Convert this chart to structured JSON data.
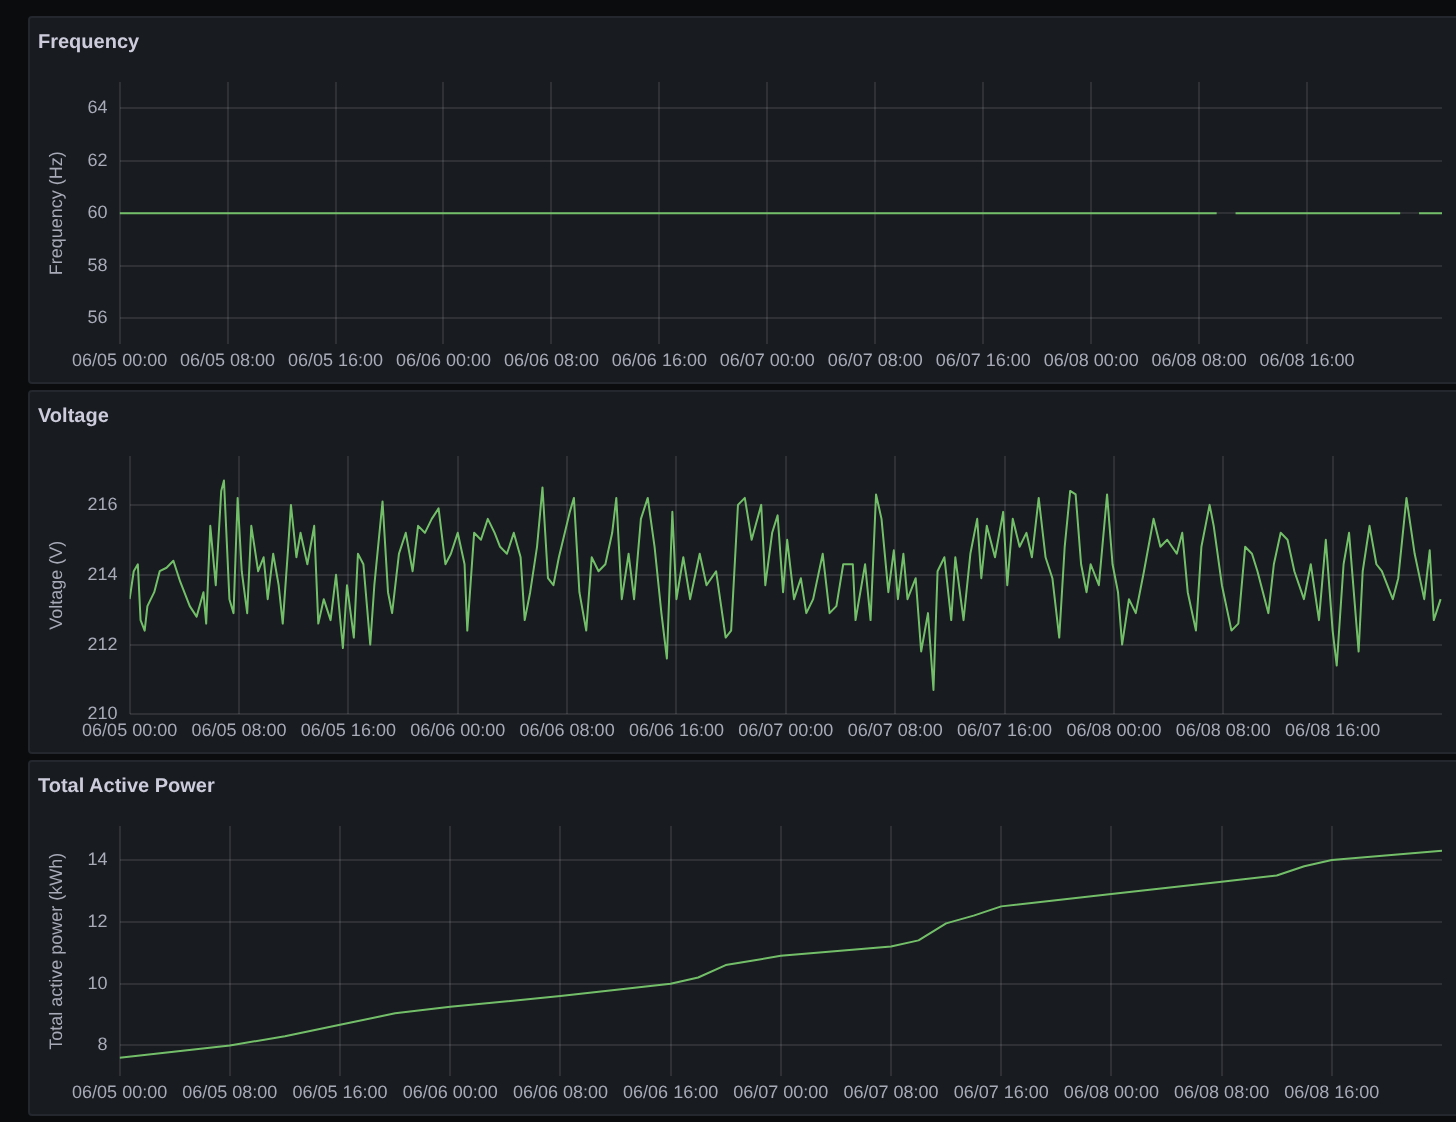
{
  "chart_data": [
    {
      "type": "line",
      "title": "Frequency",
      "ylabel": "Frequency (Hz)",
      "color": "#73bf69",
      "marker": "none",
      "grid": true,
      "xlim": [
        "--06-05T00:00",
        "--06-09T02:00"
      ],
      "ylim": [
        55,
        65
      ],
      "yticks": [
        56,
        58,
        60,
        62,
        64
      ],
      "xticks": [
        {
          "value": "--06-05T00:00",
          "label": "06/05 00:00"
        },
        {
          "value": "--06-05T08:00",
          "label": "06/05 08:00"
        },
        {
          "value": "--06-05T16:00",
          "label": "06/05 16:00"
        },
        {
          "value": "--06-06T00:00",
          "label": "06/06 00:00"
        },
        {
          "value": "--06-06T08:00",
          "label": "06/06 08:00"
        },
        {
          "value": "--06-06T16:00",
          "label": "06/06 16:00"
        },
        {
          "value": "--06-07T00:00",
          "label": "06/07 00:00"
        },
        {
          "value": "--06-07T08:00",
          "label": "06/07 08:00"
        },
        {
          "value": "--06-07T16:00",
          "label": "06/07 16:00"
        },
        {
          "value": "--06-08T00:00",
          "label": "06/08 00:00"
        },
        {
          "value": "--06-08T08:00",
          "label": "06/08 08:00"
        },
        {
          "value": "--06-08T16:00",
          "label": "06/08 16:00"
        }
      ],
      "x": [
        "--06-05T00:00",
        "--06-05T03:00",
        "--06-05T06:00",
        "--06-05T09:00",
        "--06-05T12:00",
        "--06-05T15:00",
        "--06-05T18:00",
        "--06-05T21:00",
        "--06-06T00:00",
        "--06-06T03:00",
        "--06-06T06:00",
        "--06-06T09:00",
        "--06-06T12:00",
        "--06-06T15:00",
        "--06-06T18:00",
        "--06-06T21:00",
        "--06-07T00:00",
        "--06-07T03:00",
        "--06-07T06:00",
        "--06-07T09:00",
        "--06-07T12:00",
        "--06-07T15:00",
        "--06-07T18:00",
        "--06-07T21:00",
        "--06-08T00:00",
        "--06-08T03:00",
        "--06-08T06:00",
        "--06-08T09:18",
        "--06-08T10:00",
        "--06-08T10:42",
        "--06-08T13:00",
        "--06-08T16:00",
        "--06-08T19:00",
        "--06-08T22:54",
        "--06-08T23:36",
        "--06-09T00:18",
        "--06-09T02:00"
      ],
      "values": [
        60,
        60,
        60,
        60,
        60,
        60,
        60,
        60,
        60,
        60,
        60,
        60,
        60,
        60,
        60,
        60,
        60,
        60,
        60,
        60,
        60,
        60,
        60,
        60,
        60,
        60,
        60,
        60,
        null,
        60,
        60,
        60,
        60,
        60,
        null,
        60,
        60
      ]
    },
    {
      "type": "line",
      "title": "Voltage",
      "ylabel": "Voltage (V)",
      "color": "#73bf69",
      "marker": "none",
      "grid": true,
      "xlim": [
        "--06-05T00:00",
        "--06-09T00:00"
      ],
      "ylim": [
        210,
        217.4
      ],
      "yticks": [
        210,
        212,
        214,
        216
      ],
      "xticks": [
        {
          "value": "--06-05T00:00",
          "label": "06/05 00:00"
        },
        {
          "value": "--06-05T08:00",
          "label": "06/05 08:00"
        },
        {
          "value": "--06-05T16:00",
          "label": "06/05 16:00"
        },
        {
          "value": "--06-06T00:00",
          "label": "06/06 00:00"
        },
        {
          "value": "--06-06T08:00",
          "label": "06/06 08:00"
        },
        {
          "value": "--06-06T16:00",
          "label": "06/06 16:00"
        },
        {
          "value": "--06-07T00:00",
          "label": "06/07 00:00"
        },
        {
          "value": "--06-07T08:00",
          "label": "06/07 08:00"
        },
        {
          "value": "--06-07T16:00",
          "label": "06/07 16:00"
        },
        {
          "value": "--06-08T00:00",
          "label": "06/08 00:00"
        },
        {
          "value": "--06-08T08:00",
          "label": "06/08 08:00"
        },
        {
          "value": "--06-08T16:00",
          "label": "06/08 16:00"
        }
      ],
      "x": [
        "--06-05T00:00",
        "--06-05T00:18",
        "--06-05T00:36",
        "--06-05T00:48",
        "--06-05T01:06",
        "--06-05T01:18",
        "--06-05T01:48",
        "--06-05T02:12",
        "--06-05T02:42",
        "--06-05T03:12",
        "--06-05T03:42",
        "--06-05T04:24",
        "--06-05T04:54",
        "--06-05T05:24",
        "--06-05T05:36",
        "--06-05T05:54",
        "--06-05T06:18",
        "--06-05T06:42",
        "--06-05T06:54",
        "--06-05T07:18",
        "--06-05T07:36",
        "--06-05T07:54",
        "--06-05T08:12",
        "--06-05T08:36",
        "--06-05T08:54",
        "--06-05T09:24",
        "--06-05T09:48",
        "--06-05T10:06",
        "--06-05T10:30",
        "--06-05T10:54",
        "--06-05T11:12",
        "--06-05T11:36",
        "--06-05T11:48",
        "--06-05T12:12",
        "--06-05T12:30",
        "--06-05T13:00",
        "--06-05T13:30",
        "--06-05T13:48",
        "--06-05T14:12",
        "--06-05T14:42",
        "--06-05T15:06",
        "--06-05T15:36",
        "--06-05T15:54",
        "--06-05T16:24",
        "--06-05T16:42",
        "--06-05T17:06",
        "--06-05T17:36",
        "--06-05T17:54",
        "--06-05T18:30",
        "--06-05T18:54",
        "--06-05T19:12",
        "--06-05T19:42",
        "--06-05T20:12",
        "--06-05T20:42",
        "--06-05T21:06",
        "--06-05T21:36",
        "--06-05T22:06",
        "--06-05T22:36",
        "--06-05T23:06",
        "--06-05T23:30",
        "--06-06T00:00",
        "--06-06T00:30",
        "--06-06T00:42",
        "--06-06T01:12",
        "--06-06T01:42",
        "--06-06T02:12",
        "--06-06T02:42",
        "--06-06T03:06",
        "--06-06T03:36",
        "--06-06T04:06",
        "--06-06T04:36",
        "--06-06T04:54",
        "--06-06T05:18",
        "--06-06T05:48",
        "--06-06T06:12",
        "--06-06T06:36",
        "--06-06T07:00",
        "--06-06T07:24",
        "--06-06T08:12",
        "--06-06T08:30",
        "--06-06T08:54",
        "--06-06T09:24",
        "--06-06T09:48",
        "--06-06T10:18",
        "--06-06T10:48",
        "--06-06T11:18",
        "--06-06T11:36",
        "--06-06T12:00",
        "--06-06T12:30",
        "--06-06T12:54",
        "--06-06T13:24",
        "--06-06T13:54",
        "--06-06T14:24",
        "--06-06T14:54",
        "--06-06T15:18",
        "--06-06T15:42",
        "--06-06T16:00",
        "--06-06T16:30",
        "--06-06T17:00",
        "--06-06T17:42",
        "--06-06T18:12",
        "--06-06T18:54",
        "--06-06T19:36",
        "--06-06T20:00",
        "--06-06T20:30",
        "--06-06T21:00",
        "--06-06T21:30",
        "--06-06T22:12",
        "--06-06T22:30",
        "--06-06T23:00",
        "--06-06T23:24",
        "--06-06T23:48",
        "--06-07T00:06",
        "--06-07T00:36",
        "--06-07T01:06",
        "--06-07T01:30",
        "--06-07T02:00",
        "--06-07T02:42",
        "--06-07T03:12",
        "--06-07T03:42",
        "--06-07T04:12",
        "--06-07T04:54",
        "--06-07T05:06",
        "--06-07T05:48",
        "--06-07T06:12",
        "--06-07T06:36",
        "--06-07T07:00",
        "--06-07T07:30",
        "--06-07T07:54",
        "--06-07T08:12",
        "--06-07T08:36",
        "--06-07T08:54",
        "--06-07T09:30",
        "--06-07T09:54",
        "--06-07T10:24",
        "--06-07T10:48",
        "--06-07T11:06",
        "--06-07T11:36",
        "--06-07T12:06",
        "--06-07T12:24",
        "--06-07T13:00",
        "--06-07T13:30",
        "--06-07T14:00",
        "--06-07T14:18",
        "--06-07T14:42",
        "--06-07T15:18",
        "--06-07T15:54",
        "--06-07T16:12",
        "--06-07T16:36",
        "--06-07T17:06",
        "--06-07T17:36",
        "--06-07T18:00",
        "--06-07T18:30",
        "--06-07T19:00",
        "--06-07T19:30",
        "--06-07T20:00",
        "--06-07T20:24",
        "--06-07T20:48",
        "--06-07T21:12",
        "--06-07T21:36",
        "--06-07T22:00",
        "--06-07T22:18",
        "--06-07T22:54",
        "--06-07T23:30",
        "--06-07T23:54",
        "--06-08T00:18",
        "--06-08T00:36",
        "--06-08T01:06",
        "--06-08T01:36",
        "--06-08T02:12",
        "--06-08T02:54",
        "--06-08T03:24",
        "--06-08T03:54",
        "--06-08T04:36",
        "--06-08T05:00",
        "--06-08T05:24",
        "--06-08T06:00",
        "--06-08T06:24",
        "--06-08T07:00",
        "--06-08T07:18",
        "--06-08T07:54",
        "--06-08T08:36",
        "--06-08T09:06",
        "--06-08T09:36",
        "--06-08T10:06",
        "--06-08T10:30",
        "--06-08T11:18",
        "--06-08T11:42",
        "--06-08T12:12",
        "--06-08T12:42",
        "--06-08T13:12",
        "--06-08T13:54",
        "--06-08T14:24",
        "--06-08T15:00",
        "--06-08T15:30",
        "--06-08T16:00",
        "--06-08T16:18",
        "--06-08T16:48",
        "--06-08T17:12",
        "--06-08T17:54",
        "--06-08T18:12",
        "--06-08T18:42",
        "--06-08T19:12",
        "--06-08T19:36",
        "--06-08T20:24",
        "--06-08T20:48",
        "--06-08T21:24",
        "--06-08T22:00",
        "--06-08T22:42",
        "--06-08T23:06",
        "--06-08T23:24",
        "--06-08T23:54"
      ],
      "values": [
        213.3,
        214.1,
        214.3,
        212.7,
        212.4,
        213.1,
        213.5,
        214.1,
        214.2,
        214.4,
        213.8,
        213.1,
        212.8,
        213.5,
        212.6,
        215.4,
        213.7,
        216.4,
        216.7,
        213.3,
        212.9,
        216.2,
        214.1,
        212.9,
        215.4,
        214.1,
        214.5,
        213.3,
        214.6,
        213.7,
        212.6,
        214.8,
        216.0,
        214.5,
        215.2,
        214.3,
        215.4,
        212.6,
        213.3,
        212.7,
        214.0,
        211.9,
        213.7,
        212.2,
        214.6,
        214.3,
        212.0,
        213.7,
        216.1,
        213.5,
        212.9,
        214.6,
        215.2,
        214.1,
        215.4,
        215.2,
        215.6,
        215.9,
        214.3,
        214.6,
        215.2,
        214.3,
        212.4,
        215.2,
        215.0,
        215.6,
        215.2,
        214.8,
        214.6,
        215.2,
        214.5,
        212.7,
        213.5,
        214.8,
        216.5,
        213.9,
        213.7,
        214.5,
        215.8,
        216.2,
        213.5,
        212.4,
        214.5,
        214.1,
        214.3,
        215.2,
        216.2,
        213.3,
        214.6,
        213.3,
        215.6,
        216.2,
        214.8,
        212.9,
        211.6,
        215.8,
        213.3,
        214.5,
        213.3,
        214.6,
        213.7,
        214.1,
        212.2,
        212.4,
        216.0,
        216.2,
        215.0,
        216.0,
        213.7,
        215.2,
        215.7,
        213.5,
        215.0,
        213.3,
        213.9,
        212.9,
        213.3,
        214.6,
        212.9,
        213.1,
        214.3,
        214.3,
        212.7,
        214.3,
        212.7,
        216.3,
        215.6,
        213.5,
        214.7,
        213.3,
        214.6,
        213.3,
        213.9,
        211.8,
        212.9,
        210.7,
        214.1,
        214.5,
        212.7,
        214.5,
        212.7,
        214.6,
        215.6,
        213.9,
        215.4,
        214.5,
        215.8,
        213.7,
        215.6,
        214.8,
        215.2,
        214.5,
        216.2,
        214.5,
        213.9,
        212.2,
        214.8,
        216.4,
        216.3,
        214.3,
        213.5,
        214.3,
        213.7,
        216.3,
        214.3,
        213.5,
        212.0,
        213.3,
        212.9,
        214.1,
        215.6,
        214.8,
        215.0,
        214.6,
        215.2,
        213.5,
        212.4,
        214.8,
        216.0,
        215.4,
        213.7,
        212.4,
        212.6,
        214.8,
        214.6,
        214.1,
        212.9,
        214.3,
        215.2,
        215.0,
        214.1,
        213.3,
        214.3,
        212.7,
        215.0,
        212.4,
        211.4,
        214.3,
        215.2,
        211.8,
        214.1,
        215.4,
        214.3,
        214.1,
        213.3,
        213.9,
        216.2,
        214.6,
        213.3,
        214.7,
        212.7,
        213.3
      ]
    },
    {
      "type": "line",
      "title": "Total Active Power",
      "ylabel": "Total active power (kWh)",
      "color": "#73bf69",
      "marker": "none",
      "grid": true,
      "xlim": [
        "--06-05T00:00",
        "--06-09T00:00"
      ],
      "ylim": [
        7,
        15.1
      ],
      "yticks": [
        8,
        10,
        12,
        14
      ],
      "xticks": [
        {
          "value": "--06-05T00:00",
          "label": "06/05 00:00"
        },
        {
          "value": "--06-05T08:00",
          "label": "06/05 08:00"
        },
        {
          "value": "--06-05T16:00",
          "label": "06/05 16:00"
        },
        {
          "value": "--06-06T00:00",
          "label": "06/06 00:00"
        },
        {
          "value": "--06-06T08:00",
          "label": "06/06 08:00"
        },
        {
          "value": "--06-06T16:00",
          "label": "06/06 16:00"
        },
        {
          "value": "--06-07T00:00",
          "label": "06/07 00:00"
        },
        {
          "value": "--06-07T08:00",
          "label": "06/07 08:00"
        },
        {
          "value": "--06-07T16:00",
          "label": "06/07 16:00"
        },
        {
          "value": "--06-08T00:00",
          "label": "06/08 00:00"
        },
        {
          "value": "--06-08T08:00",
          "label": "06/08 08:00"
        },
        {
          "value": "--06-08T16:00",
          "label": "06/08 16:00"
        }
      ],
      "x": [
        "--06-05T00:00",
        "--06-05T08:00",
        "--06-05T12:00",
        "--06-05T16:00",
        "--06-05T20:00",
        "--06-06T00:00",
        "--06-06T08:00",
        "--06-06T16:00",
        "--06-06T18:00",
        "--06-06T20:00",
        "--06-06T22:00",
        "--06-07T00:00",
        "--06-07T08:00",
        "--06-07T10:00",
        "--06-07T12:00",
        "--06-07T14:00",
        "--06-07T16:00",
        "--06-08T00:00",
        "--06-08T08:00",
        "--06-08T12:00",
        "--06-08T14:00",
        "--06-08T16:00",
        "--06-09T00:00"
      ],
      "values": [
        7.6,
        8.0,
        8.3,
        8.67,
        9.04,
        9.25,
        9.6,
        10.0,
        10.2,
        10.6,
        10.75,
        10.9,
        11.2,
        11.4,
        11.95,
        12.2,
        12.5,
        12.9,
        13.3,
        13.5,
        13.8,
        14.0,
        14.3
      ]
    }
  ]
}
